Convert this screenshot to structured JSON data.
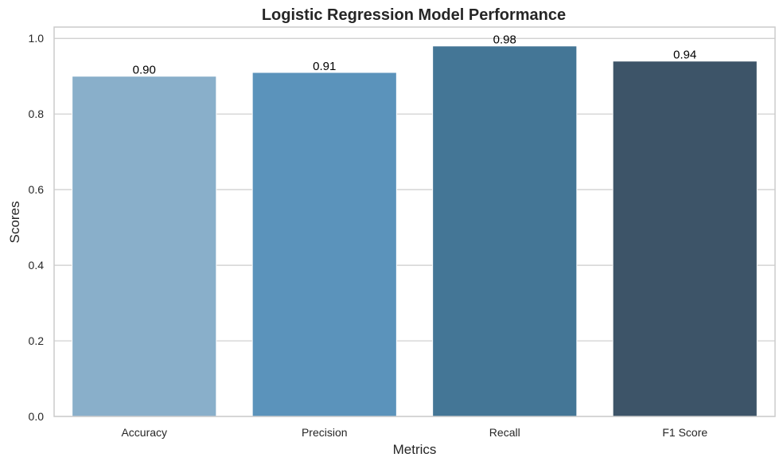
{
  "chart_data": {
    "type": "bar",
    "title": "Logistic Regression Model Performance",
    "xlabel": "Metrics",
    "ylabel": "Scores",
    "categories": [
      "Accuracy",
      "Precision",
      "Recall",
      "F1 Score"
    ],
    "values": [
      0.9,
      0.91,
      0.98,
      0.94
    ],
    "value_labels": [
      "0.90",
      "0.91",
      "0.98",
      "0.94"
    ],
    "ylim": [
      0,
      1.03
    ],
    "yticks": [
      0.0,
      0.2,
      0.4,
      0.6,
      0.8,
      1.0
    ],
    "ytick_labels": [
      "0.0",
      "0.2",
      "0.4",
      "0.6",
      "0.8",
      "1.0"
    ],
    "grid": true,
    "legend": "none",
    "colors": [
      "#89afca",
      "#5b93bb",
      "#447696",
      "#3d5468"
    ]
  }
}
